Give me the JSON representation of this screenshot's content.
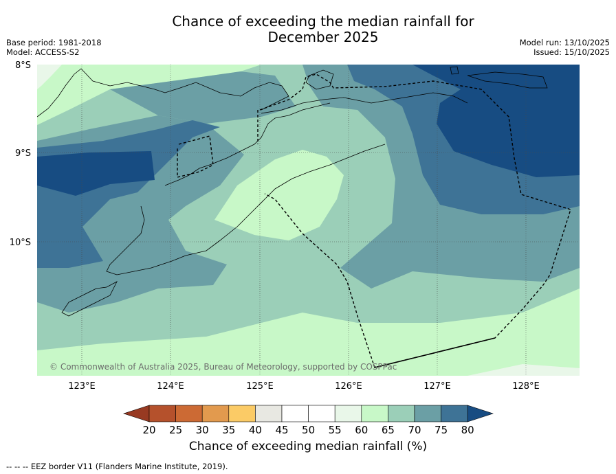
{
  "title": {
    "line1": "Chance of exceeding the median rainfall for",
    "line2": "December 2025"
  },
  "meta": {
    "base_period": "Base period: 1981-2018",
    "model": "Model: ACCESS-S2",
    "model_run": "Model run: 13/10/2025",
    "issued": "Issued: 15/10/2025"
  },
  "axes": {
    "latitude_labels": [
      "8°S",
      "9°S",
      "10°S"
    ],
    "longitude_labels": [
      "123°E",
      "124°E",
      "125°E",
      "126°E",
      "127°E",
      "128°E"
    ]
  },
  "watermark": "© Commonwealth of Australia 2025, Bureau of Meteorology, supported by COSPPac",
  "colorbar": {
    "ticks": [
      "20",
      "25",
      "30",
      "35",
      "40",
      "45",
      "50",
      "55",
      "60",
      "65",
      "70",
      "75",
      "80"
    ],
    "colors": [
      "#b5512c",
      "#cc6a34",
      "#e29a4e",
      "#fbcb66",
      "#e8e8e2",
      "#ffffff",
      "#ffffff",
      "#e9f7e9",
      "#c8f8c8",
      "#9bcfb8",
      "#6b9fa5",
      "#3e7396"
    ],
    "under_color": "#983a22",
    "over_color": "#174c82",
    "label": "Chance of exceeding median rainfall (%)"
  },
  "footer": "-- -- -- EEZ border V11 (Flanders Marine Institute, 2019)."
}
